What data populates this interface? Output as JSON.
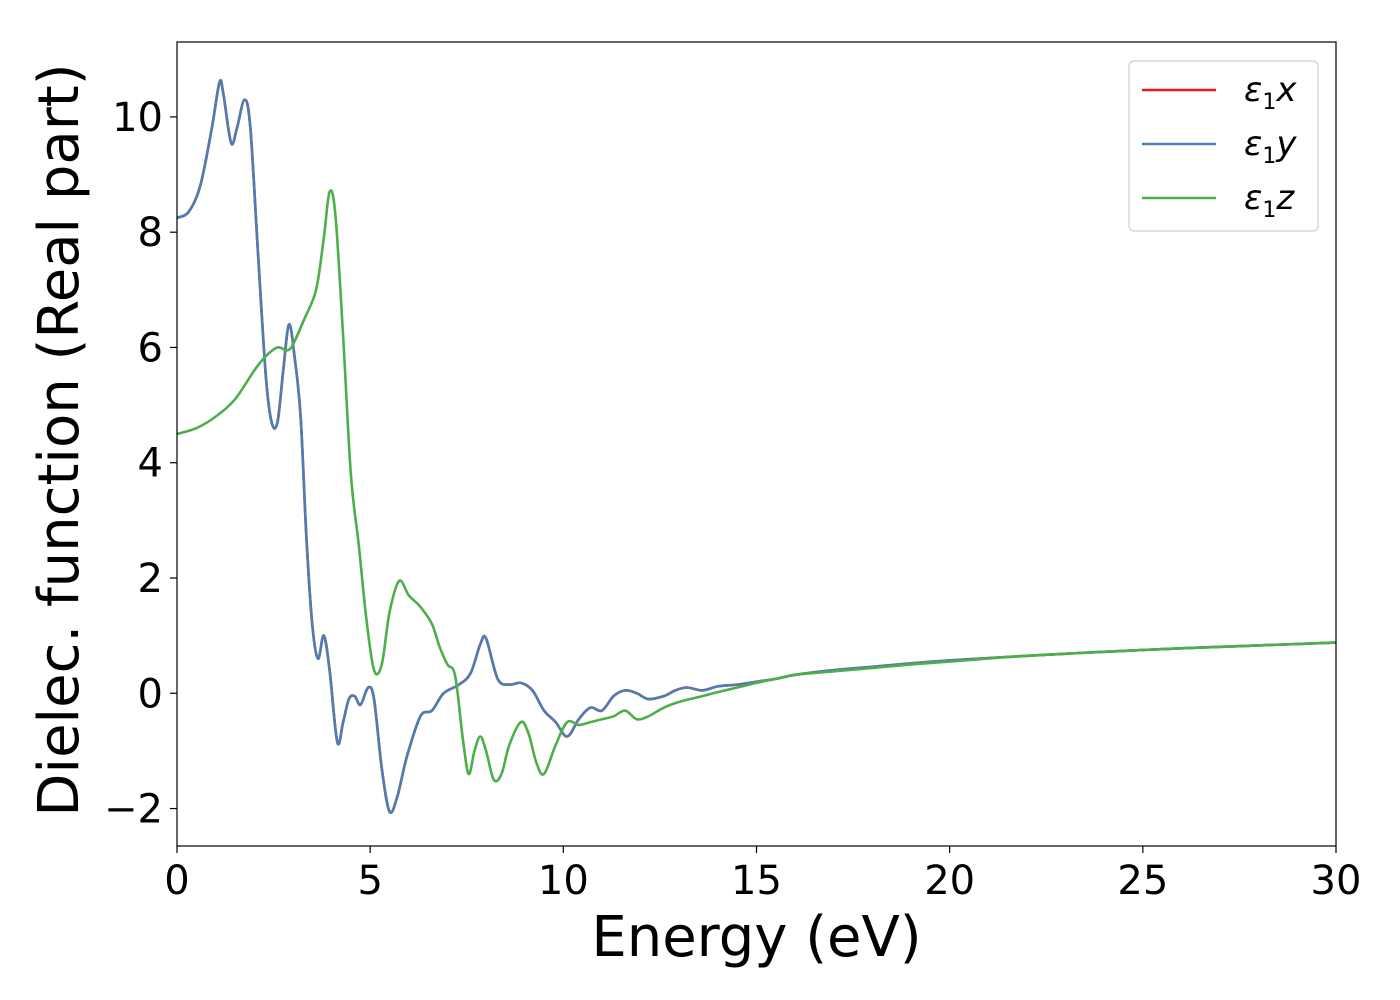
{
  "chart_data": {
    "type": "line",
    "xlabel": "Energy (eV)",
    "ylabel": "Dielec. function (Real part)",
    "xlim": [
      0,
      30
    ],
    "ylim": [
      -2.65,
      11.3
    ],
    "xticks": [
      0,
      5,
      10,
      15,
      20,
      25,
      30
    ],
    "xtick_labels": [
      "0",
      "5",
      "10",
      "15",
      "20",
      "25",
      "30"
    ],
    "yticks": [
      -2,
      0,
      2,
      4,
      6,
      8,
      10
    ],
    "ytick_labels": [
      "−2",
      "0",
      "2",
      "4",
      "6",
      "8",
      "10"
    ],
    "grid": false,
    "legend_position": "top-right",
    "series": [
      {
        "name": "ε1x",
        "legend_base": "ε",
        "legend_sub": "1",
        "legend_var": "x",
        "color": "#e41a1c",
        "points": [
          [
            0,
            8.25
          ],
          [
            0.3,
            8.35
          ],
          [
            0.6,
            8.8
          ],
          [
            0.9,
            9.8
          ],
          [
            1.1,
            10.6
          ],
          [
            1.2,
            10.4
          ],
          [
            1.4,
            9.55
          ],
          [
            1.55,
            9.8
          ],
          [
            1.75,
            10.3
          ],
          [
            1.9,
            9.8
          ],
          [
            2.1,
            7.6
          ],
          [
            2.3,
            5.5
          ],
          [
            2.45,
            4.7
          ],
          [
            2.6,
            4.7
          ],
          [
            2.75,
            5.6
          ],
          [
            2.9,
            6.4
          ],
          [
            3.05,
            5.8
          ],
          [
            3.2,
            4.8
          ],
          [
            3.35,
            2.7
          ],
          [
            3.5,
            1.2
          ],
          [
            3.65,
            0.6
          ],
          [
            3.8,
            1.0
          ],
          [
            3.95,
            0.4
          ],
          [
            4.15,
            -0.85
          ],
          [
            4.3,
            -0.5
          ],
          [
            4.45,
            -0.1
          ],
          [
            4.6,
            -0.05
          ],
          [
            4.75,
            -0.2
          ],
          [
            4.95,
            0.1
          ],
          [
            5.1,
            -0.1
          ],
          [
            5.3,
            -1.3
          ],
          [
            5.5,
            -2.05
          ],
          [
            5.7,
            -1.8
          ],
          [
            5.95,
            -1.1
          ],
          [
            6.3,
            -0.4
          ],
          [
            6.6,
            -0.3
          ],
          [
            6.9,
            0.0
          ],
          [
            7.3,
            0.15
          ],
          [
            7.6,
            0.35
          ],
          [
            7.85,
            0.85
          ],
          [
            8.0,
            0.95
          ],
          [
            8.3,
            0.25
          ],
          [
            8.6,
            0.15
          ],
          [
            8.9,
            0.18
          ],
          [
            9.2,
            0.05
          ],
          [
            9.5,
            -0.3
          ],
          [
            9.8,
            -0.5
          ],
          [
            10.1,
            -0.75
          ],
          [
            10.4,
            -0.45
          ],
          [
            10.7,
            -0.25
          ],
          [
            11.0,
            -0.3
          ],
          [
            11.3,
            -0.05
          ],
          [
            11.6,
            0.05
          ],
          [
            11.9,
            0.0
          ],
          [
            12.2,
            -0.1
          ],
          [
            12.6,
            -0.05
          ],
          [
            12.9,
            0.05
          ],
          [
            13.2,
            0.1
          ],
          [
            13.6,
            0.05
          ],
          [
            14.0,
            0.12
          ],
          [
            14.5,
            0.15
          ],
          [
            15.0,
            0.2
          ],
          [
            15.5,
            0.25
          ],
          [
            16.0,
            0.32
          ],
          [
            17.0,
            0.4
          ],
          [
            18.0,
            0.46
          ],
          [
            19.0,
            0.52
          ],
          [
            20.0,
            0.57
          ],
          [
            22.0,
            0.65
          ],
          [
            24.0,
            0.72
          ],
          [
            26.0,
            0.78
          ],
          [
            28.0,
            0.83
          ],
          [
            30.0,
            0.88
          ]
        ]
      },
      {
        "name": "ε1y",
        "legend_base": "ε",
        "legend_sub": "1",
        "legend_var": "y",
        "color": "#4f7db1",
        "points": [
          [
            0,
            8.25
          ],
          [
            0.3,
            8.35
          ],
          [
            0.6,
            8.8
          ],
          [
            0.9,
            9.8
          ],
          [
            1.1,
            10.6
          ],
          [
            1.2,
            10.4
          ],
          [
            1.4,
            9.55
          ],
          [
            1.55,
            9.8
          ],
          [
            1.75,
            10.3
          ],
          [
            1.9,
            9.8
          ],
          [
            2.1,
            7.6
          ],
          [
            2.3,
            5.5
          ],
          [
            2.45,
            4.7
          ],
          [
            2.6,
            4.7
          ],
          [
            2.75,
            5.6
          ],
          [
            2.9,
            6.4
          ],
          [
            3.05,
            5.8
          ],
          [
            3.2,
            4.8
          ],
          [
            3.35,
            2.7
          ],
          [
            3.5,
            1.2
          ],
          [
            3.65,
            0.6
          ],
          [
            3.8,
            1.0
          ],
          [
            3.95,
            0.4
          ],
          [
            4.15,
            -0.85
          ],
          [
            4.3,
            -0.5
          ],
          [
            4.45,
            -0.1
          ],
          [
            4.6,
            -0.05
          ],
          [
            4.75,
            -0.2
          ],
          [
            4.95,
            0.1
          ],
          [
            5.1,
            -0.1
          ],
          [
            5.3,
            -1.3
          ],
          [
            5.5,
            -2.05
          ],
          [
            5.7,
            -1.8
          ],
          [
            5.95,
            -1.1
          ],
          [
            6.3,
            -0.4
          ],
          [
            6.6,
            -0.3
          ],
          [
            6.9,
            0.0
          ],
          [
            7.3,
            0.15
          ],
          [
            7.6,
            0.35
          ],
          [
            7.85,
            0.85
          ],
          [
            8.0,
            0.95
          ],
          [
            8.3,
            0.25
          ],
          [
            8.6,
            0.15
          ],
          [
            8.9,
            0.18
          ],
          [
            9.2,
            0.05
          ],
          [
            9.5,
            -0.3
          ],
          [
            9.8,
            -0.5
          ],
          [
            10.1,
            -0.75
          ],
          [
            10.4,
            -0.45
          ],
          [
            10.7,
            -0.25
          ],
          [
            11.0,
            -0.3
          ],
          [
            11.3,
            -0.05
          ],
          [
            11.6,
            0.05
          ],
          [
            11.9,
            0.0
          ],
          [
            12.2,
            -0.1
          ],
          [
            12.6,
            -0.05
          ],
          [
            12.9,
            0.05
          ],
          [
            13.2,
            0.1
          ],
          [
            13.6,
            0.05
          ],
          [
            14.0,
            0.12
          ],
          [
            14.5,
            0.15
          ],
          [
            15.0,
            0.2
          ],
          [
            15.5,
            0.25
          ],
          [
            16.0,
            0.32
          ],
          [
            17.0,
            0.4
          ],
          [
            18.0,
            0.46
          ],
          [
            19.0,
            0.52
          ],
          [
            20.0,
            0.57
          ],
          [
            22.0,
            0.65
          ],
          [
            24.0,
            0.72
          ],
          [
            26.0,
            0.78
          ],
          [
            28.0,
            0.83
          ],
          [
            30.0,
            0.88
          ]
        ]
      },
      {
        "name": "ε1z",
        "legend_base": "ε",
        "legend_sub": "1",
        "legend_var": "z",
        "color": "#4daf4a",
        "points": [
          [
            0,
            4.5
          ],
          [
            0.5,
            4.6
          ],
          [
            1.0,
            4.8
          ],
          [
            1.5,
            5.1
          ],
          [
            2.0,
            5.6
          ],
          [
            2.3,
            5.85
          ],
          [
            2.6,
            6.0
          ],
          [
            2.85,
            5.95
          ],
          [
            3.0,
            6.05
          ],
          [
            3.3,
            6.5
          ],
          [
            3.6,
            7.0
          ],
          [
            3.8,
            7.9
          ],
          [
            3.95,
            8.7
          ],
          [
            4.1,
            8.3
          ],
          [
            4.3,
            6.2
          ],
          [
            4.5,
            3.8
          ],
          [
            4.7,
            2.6
          ],
          [
            4.9,
            1.3
          ],
          [
            5.1,
            0.4
          ],
          [
            5.3,
            0.5
          ],
          [
            5.5,
            1.4
          ],
          [
            5.75,
            1.95
          ],
          [
            6.0,
            1.7
          ],
          [
            6.3,
            1.5
          ],
          [
            6.6,
            1.2
          ],
          [
            6.8,
            0.8
          ],
          [
            7.0,
            0.5
          ],
          [
            7.2,
            0.3
          ],
          [
            7.4,
            -0.8
          ],
          [
            7.55,
            -1.4
          ],
          [
            7.7,
            -1.0
          ],
          [
            7.85,
            -0.75
          ],
          [
            8.0,
            -1.0
          ],
          [
            8.2,
            -1.5
          ],
          [
            8.4,
            -1.4
          ],
          [
            8.6,
            -0.9
          ],
          [
            8.9,
            -0.5
          ],
          [
            9.1,
            -0.7
          ],
          [
            9.3,
            -1.2
          ],
          [
            9.5,
            -1.4
          ],
          [
            9.8,
            -0.9
          ],
          [
            10.1,
            -0.5
          ],
          [
            10.4,
            -0.55
          ],
          [
            10.7,
            -0.5
          ],
          [
            11.0,
            -0.45
          ],
          [
            11.3,
            -0.4
          ],
          [
            11.6,
            -0.3
          ],
          [
            11.9,
            -0.45
          ],
          [
            12.2,
            -0.4
          ],
          [
            12.6,
            -0.25
          ],
          [
            13.0,
            -0.15
          ],
          [
            13.6,
            -0.05
          ],
          [
            14.0,
            0.02
          ],
          [
            14.5,
            0.1
          ],
          [
            15.0,
            0.18
          ],
          [
            15.5,
            0.25
          ],
          [
            16.0,
            0.32
          ],
          [
            17.0,
            0.38
          ],
          [
            18.0,
            0.44
          ],
          [
            19.0,
            0.5
          ],
          [
            20.0,
            0.55
          ],
          [
            22.0,
            0.65
          ],
          [
            24.0,
            0.72
          ],
          [
            26.0,
            0.78
          ],
          [
            28.0,
            0.83
          ],
          [
            30.0,
            0.88
          ]
        ]
      }
    ]
  }
}
